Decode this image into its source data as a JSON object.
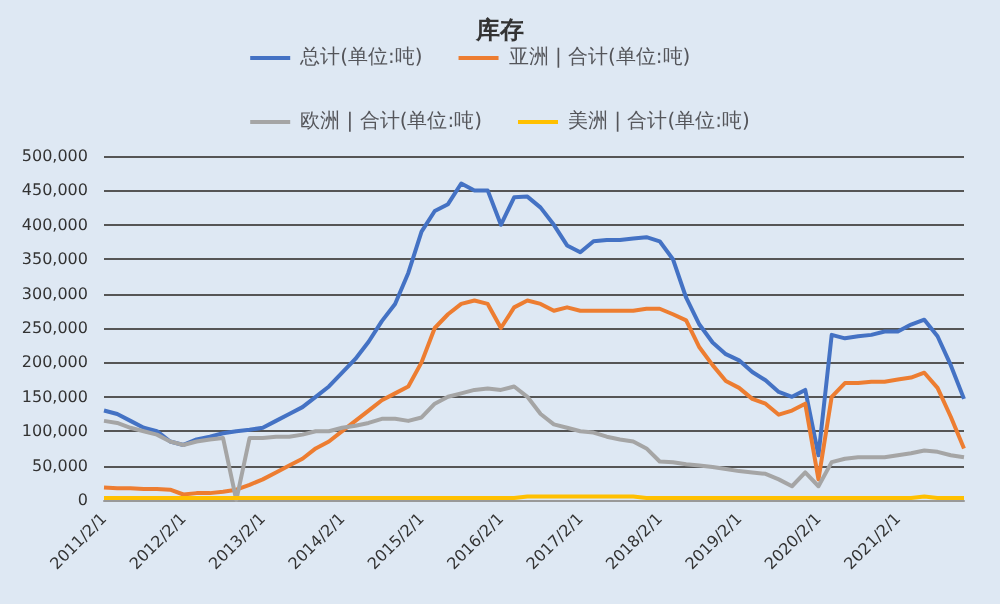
{
  "chart_data": {
    "type": "line",
    "title": "库存",
    "categories": [
      "2011/2/1",
      null,
      null,
      null,
      null,
      null,
      "2012/2/1",
      null,
      null,
      null,
      null,
      null,
      "2013/2/1",
      null,
      null,
      null,
      null,
      null,
      "2014/2/1",
      null,
      null,
      null,
      null,
      null,
      "2015/2/1",
      null,
      null,
      null,
      null,
      null,
      "2016/2/1",
      null,
      null,
      null,
      null,
      null,
      "2017/2/1",
      null,
      null,
      null,
      null,
      null,
      "2018/2/1",
      null,
      null,
      null,
      null,
      null,
      "2019/2/1",
      null,
      null,
      null,
      null,
      null,
      "2020/2/1",
      null,
      null,
      null,
      null,
      null,
      "2021/2/1",
      null,
      null,
      null,
      null,
      null
    ],
    "series": [
      {
        "name": "总计(单位:吨)",
        "color": "#4472c4",
        "values": [
          130000,
          125000,
          115000,
          105000,
          100000,
          85000,
          80000,
          88000,
          92000,
          97000,
          100000,
          102000,
          105000,
          115000,
          125000,
          135000,
          150000,
          165000,
          185000,
          205000,
          230000,
          260000,
          285000,
          330000,
          390000,
          420000,
          430000,
          460000,
          450000,
          450000,
          400000,
          440000,
          441000,
          425000,
          400000,
          370000,
          360000,
          376000,
          378000,
          378000,
          380000,
          382000,
          376000,
          350000,
          294000,
          255000,
          229000,
          212000,
          203000,
          186000,
          174000,
          157000,
          150000,
          160000,
          65000,
          240000,
          235000,
          238000,
          240000,
          245000,
          245000,
          255000,
          262000,
          238000,
          196000,
          147000
        ]
      },
      {
        "name": "亚洲 | 合计(单位:吨)",
        "color": "#ed7d31",
        "values": [
          18000,
          17000,
          17000,
          16000,
          16000,
          15000,
          8000,
          10000,
          10000,
          12000,
          15000,
          22000,
          30000,
          40000,
          50000,
          60000,
          75000,
          85000,
          100000,
          115000,
          130000,
          145000,
          155000,
          165000,
          200000,
          250000,
          270000,
          285000,
          290000,
          285000,
          250000,
          280000,
          290000,
          285000,
          275000,
          280000,
          275000,
          275000,
          275000,
          275000,
          275000,
          278000,
          278000,
          270000,
          261000,
          222000,
          196000,
          173000,
          163000,
          147000,
          140000,
          124000,
          130000,
          140000,
          30000,
          150000,
          170000,
          170000,
          172000,
          172000,
          175000,
          178000,
          185000,
          163000,
          121000,
          75000
        ]
      },
      {
        "name": "欧洲 | 合计(单位:吨)",
        "color": "#a5a5a5",
        "values": [
          115000,
          112000,
          105000,
          100000,
          95000,
          85000,
          80000,
          85000,
          88000,
          90000,
          0,
          90000,
          90000,
          92000,
          92000,
          95000,
          100000,
          100000,
          105000,
          108000,
          112000,
          118000,
          118000,
          115000,
          120000,
          140000,
          150000,
          155000,
          160000,
          162000,
          160000,
          165000,
          150000,
          125000,
          110000,
          105000,
          100000,
          98000,
          92000,
          88000,
          85000,
          75000,
          56000,
          55000,
          52000,
          50000,
          48000,
          45000,
          42000,
          40000,
          38000,
          30000,
          20000,
          40000,
          20000,
          55000,
          60000,
          62000,
          62000,
          62000,
          65000,
          68000,
          72000,
          70000,
          65000,
          62000
        ]
      },
      {
        "name": "美洲 | 合计(单位:吨)",
        "color": "#ffc000",
        "values": [
          3000,
          3000,
          3000,
          3000,
          3000,
          3000,
          3000,
          3000,
          3000,
          3000,
          3000,
          3000,
          3000,
          3000,
          3000,
          3000,
          3000,
          3000,
          3000,
          3000,
          3000,
          3000,
          3000,
          3000,
          3000,
          3000,
          3000,
          3000,
          3000,
          3000,
          3000,
          3000,
          5000,
          5000,
          5000,
          5000,
          5000,
          5000,
          5000,
          5000,
          5000,
          3000,
          3000,
          3000,
          3000,
          3000,
          3000,
          3000,
          3000,
          3000,
          3000,
          3000,
          3000,
          3000,
          3000,
          3000,
          3000,
          3000,
          3000,
          3000,
          3000,
          3000,
          5000,
          3000,
          3000,
          3000
        ]
      }
    ],
    "ylim": [
      0,
      500000
    ],
    "yticks": [
      0,
      {
        "value": 50000,
        "label": "50,000"
      },
      {
        "value": 100000,
        "label": "100,000"
      },
      {
        "value": 150000,
        "label": "150,000"
      },
      {
        "value": 200000,
        "label": "200,000"
      },
      {
        "value": 250000,
        "label": "250,000"
      },
      {
        "value": 300000,
        "label": "300,000"
      },
      {
        "value": 350000,
        "label": "350,000"
      },
      {
        "value": 400000,
        "label": "400,000"
      },
      {
        "value": 450000,
        "label": "450,000"
      },
      {
        "value": 500000,
        "label": "500,000"
      }
    ],
    "grid": "y",
    "legend": "top",
    "marker": "none",
    "line_style": "solid"
  }
}
